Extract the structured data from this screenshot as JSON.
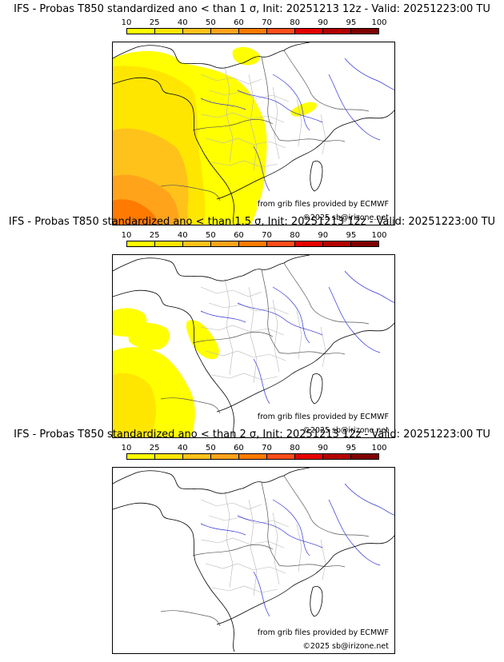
{
  "scale": {
    "ticks": [
      "10",
      "25",
      "40",
      "50",
      "60",
      "70",
      "80",
      "90",
      "95",
      "100"
    ],
    "colors": [
      "#ffff00",
      "#ffe600",
      "#ffc21a",
      "#ffa31a",
      "#ff7a00",
      "#ff4d1a",
      "#e60000",
      "#b30000",
      "#800000"
    ]
  },
  "panels": [
    {
      "title": "IFS - Probas T850  standardized ano < than 1 σ, Init: 20251213 12z - Valid: 20251223:00 TU",
      "threshold_sigma": 1,
      "source": "from grib files provided by ECMWF",
      "copyright": "©2025 sb@irizone.net",
      "extent": "large"
    },
    {
      "title": "IFS - Probas T850  standardized ano < than 1.5 σ, Init: 20251213 12z - Valid: 20251223:00 TU",
      "threshold_sigma": 1.5,
      "source": "from grib files provided by ECMWF",
      "copyright": "©2025 sb@irizone.net",
      "extent": "medium"
    },
    {
      "title": "IFS - Probas T850  standardized ano < than 2 σ, Init: 20251213 12z - Valid: 20251223:00 TU",
      "threshold_sigma": 2,
      "source": "from grib files provided by ECMWF",
      "copyright": "©2025 sb@irizone.net",
      "extent": "none"
    }
  ]
}
